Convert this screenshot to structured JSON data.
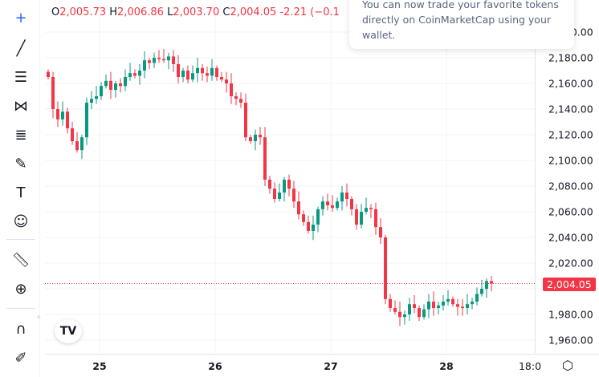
{
  "legend": {
    "o_label": "O",
    "o": "2,005.73",
    "h_label": "H",
    "h": "2,006.86",
    "l_label": "L",
    "l": "2,003.70",
    "c_label": "C",
    "c": "2,004.05",
    "change": "-2.21 (−0.1"
  },
  "tooltip": {
    "text": "You can now trade your favorite tokens directly on CoinMarketCap using your wallet."
  },
  "toolbar": {
    "icons": [
      "crosshair-icon",
      "trend-line-icon",
      "horizontal-lines-icon",
      "pattern-icon",
      "fib-icon",
      "brush-icon",
      "text-icon",
      "emoji-icon",
      "ruler-icon",
      "zoom-in-icon",
      "magnet-icon",
      "lock-draw-icon"
    ]
  },
  "y_axis": {
    "labels": [
      "2,200.00",
      "2,180.00",
      "2,160.00",
      "2,140.00",
      "2,120.00",
      "2,100.00",
      "2,080.00",
      "2,060.00",
      "2,040.00",
      "2,020.00",
      "1,980.00",
      "1,960.00"
    ],
    "current_price": "2,004.05"
  },
  "x_axis": {
    "labels": [
      "25",
      "26",
      "27",
      "28",
      "18:0"
    ]
  },
  "colors": {
    "up": "#089981",
    "down": "#f23645",
    "accent": "#2962ff"
  },
  "chart_data": {
    "type": "candlestick",
    "series": [
      {
        "closes": [
          2165,
          2140,
          2132,
          2138,
          2125,
          2115,
          2108,
          2118,
          2145,
          2148,
          2150,
          2158,
          2162,
          2155,
          2160,
          2158,
          2165,
          2168,
          2166,
          2170,
          2178,
          2176,
          2180,
          2179,
          2178,
          2181,
          2175,
          2165,
          2170,
          2163,
          2168,
          2172,
          2168,
          2166,
          2172,
          2165,
          2163,
          2160,
          2150,
          2148,
          2145,
          2118,
          2115,
          2120,
          2118,
          2085,
          2078,
          2070,
          2075,
          2085,
          2078,
          2068,
          2058,
          2052,
          2045,
          2050,
          2062,
          2068,
          2065,
          2063,
          2068,
          2075,
          2070,
          2062,
          2050,
          2060,
          2063,
          2062,
          2048,
          2040,
          1992,
          1985,
          1982,
          1978,
          1980,
          1988,
          1985,
          1978,
          1984,
          1990,
          1985,
          1987,
          1990,
          1992,
          1988,
          1986,
          1985,
          1988,
          1990,
          1996,
          2000,
          2006,
          2004.05
        ]
      }
    ],
    "last": {
      "open": 2005.73,
      "high": 2006.86,
      "low": 2003.7,
      "close": 2004.05
    },
    "ylim": [
      1950,
      2230
    ]
  }
}
